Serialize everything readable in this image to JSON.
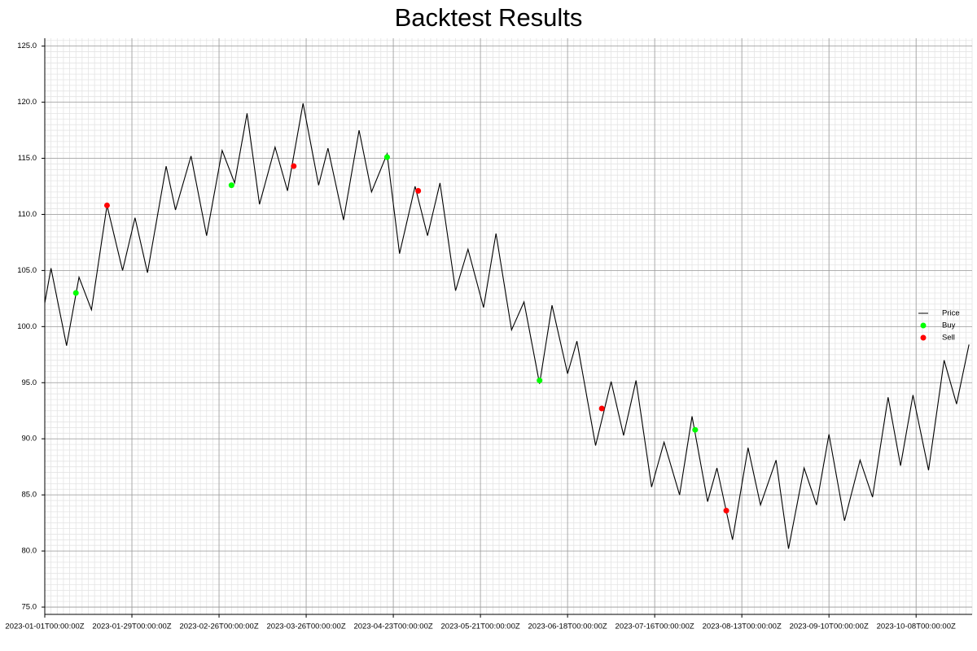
{
  "chart_data": {
    "type": "line",
    "title": "Backtest Results",
    "xlim": [
      "2023-01-01",
      "2023-10-26"
    ],
    "ylim": [
      74.35,
      125.7
    ],
    "xticks": [
      {
        "value": "2023-01-01",
        "label": "2023-01-01T00:00:00Z"
      },
      {
        "value": "2023-01-29",
        "label": "2023-01-29T00:00:00Z"
      },
      {
        "value": "2023-02-26",
        "label": "2023-02-26T00:00:00Z"
      },
      {
        "value": "2023-03-26",
        "label": "2023-03-26T00:00:00Z"
      },
      {
        "value": "2023-04-23",
        "label": "2023-04-23T00:00:00Z"
      },
      {
        "value": "2023-05-21",
        "label": "2023-05-21T00:00:00Z"
      },
      {
        "value": "2023-06-18",
        "label": "2023-06-18T00:00:00Z"
      },
      {
        "value": "2023-07-16",
        "label": "2023-07-16T00:00:00Z"
      },
      {
        "value": "2023-08-13",
        "label": "2023-08-13T00:00:00Z"
      },
      {
        "value": "2023-09-10",
        "label": "2023-09-10T00:00:00Z"
      },
      {
        "value": "2023-10-08",
        "label": "2023-10-08T00:00:00Z"
      }
    ],
    "yticks": [
      {
        "value": 75,
        "label": "75.0"
      },
      {
        "value": 80,
        "label": "80.0"
      },
      {
        "value": 85,
        "label": "85.0"
      },
      {
        "value": 90,
        "label": "90.0"
      },
      {
        "value": 95,
        "label": "95.0"
      },
      {
        "value": 100,
        "label": "100.0"
      },
      {
        "value": 105,
        "label": "105.0"
      },
      {
        "value": 110,
        "label": "110.0"
      },
      {
        "value": 115,
        "label": "115.0"
      },
      {
        "value": 120,
        "label": "120.0"
      },
      {
        "value": 125,
        "label": "125.0"
      }
    ],
    "grid": true,
    "legend": "right",
    "series": [
      {
        "name": "Price",
        "color": "#000000",
        "kind": "line",
        "x": [
          "2023-01-01",
          "2023-01-03",
          "2023-01-08",
          "2023-01-12",
          "2023-01-16",
          "2023-01-21",
          "2023-01-26",
          "2023-01-30",
          "2023-02-03",
          "2023-02-09",
          "2023-02-12",
          "2023-02-17",
          "2023-02-22",
          "2023-02-27",
          "2023-03-03",
          "2023-03-07",
          "2023-03-11",
          "2023-03-16",
          "2023-03-20",
          "2023-03-25",
          "2023-03-30",
          "2023-04-02",
          "2023-04-07",
          "2023-04-12",
          "2023-04-16",
          "2023-04-21",
          "2023-04-25",
          "2023-04-30",
          "2023-05-04",
          "2023-05-08",
          "2023-05-13",
          "2023-05-17",
          "2023-05-22",
          "2023-05-26",
          "2023-05-31",
          "2023-06-04",
          "2023-06-09",
          "2023-06-13",
          "2023-06-18",
          "2023-06-21",
          "2023-06-27",
          "2023-07-02",
          "2023-07-06",
          "2023-07-10",
          "2023-07-15",
          "2023-07-19",
          "2023-07-24",
          "2023-07-28",
          "2023-08-02",
          "2023-08-05",
          "2023-08-10",
          "2023-08-15",
          "2023-08-19",
          "2023-08-24",
          "2023-08-28",
          "2023-09-02",
          "2023-09-06",
          "2023-09-10",
          "2023-09-15",
          "2023-09-20",
          "2023-09-24",
          "2023-09-29",
          "2023-10-03",
          "2023-10-07",
          "2023-10-12",
          "2023-10-17",
          "2023-10-21",
          "2023-10-25"
        ],
        "values": [
          102.1,
          105.2,
          98.3,
          104.4,
          101.5,
          110.8,
          105.0,
          109.7,
          104.8,
          114.3,
          110.4,
          115.2,
          108.1,
          115.7,
          112.8,
          119.0,
          110.9,
          116.0,
          112.1,
          119.9,
          112.6,
          115.9,
          109.5,
          117.5,
          112.0,
          115.4,
          106.5,
          112.5,
          108.1,
          112.8,
          103.2,
          106.9,
          101.7,
          108.3,
          99.7,
          102.2,
          94.9,
          101.9,
          95.8,
          98.7,
          89.4,
          95.1,
          90.3,
          95.2,
          85.7,
          89.7,
          85.0,
          92.0,
          84.4,
          87.4,
          81.0,
          89.2,
          84.1,
          88.1,
          80.2,
          87.4,
          84.1,
          90.4,
          82.7,
          88.1,
          84.8,
          93.7,
          87.6,
          93.9,
          87.2,
          97.0,
          93.1,
          98.4
        ]
      },
      {
        "name": "Buy",
        "color": "#00ff00",
        "kind": "scatter",
        "x": [
          "2023-01-11",
          "2023-03-02",
          "2023-04-21",
          "2023-06-09",
          "2023-07-29"
        ],
        "values": [
          103.0,
          112.6,
          115.1,
          95.2,
          90.8
        ]
      },
      {
        "name": "Sell",
        "color": "#ff0000",
        "kind": "scatter",
        "x": [
          "2023-01-21",
          "2023-03-22",
          "2023-05-01",
          "2023-06-29",
          "2023-08-08"
        ],
        "values": [
          110.8,
          114.3,
          112.1,
          92.7,
          83.6
        ]
      }
    ]
  }
}
